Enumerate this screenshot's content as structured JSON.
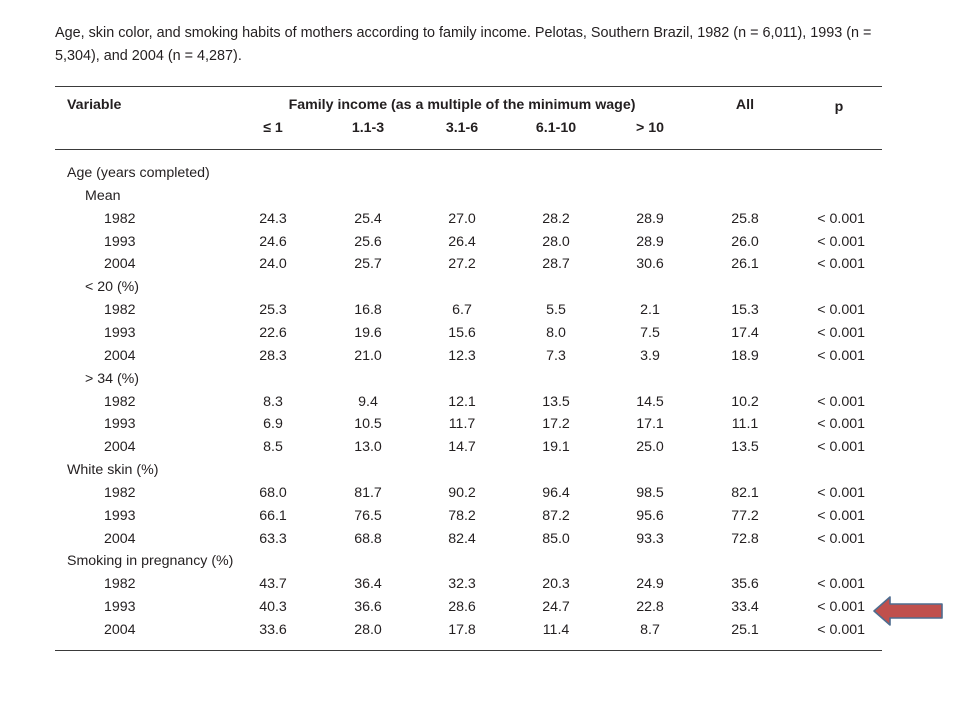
{
  "caption": "Age, skin color, and smoking habits of mothers according to family income. Pelotas, Southern Brazil, 1982 (n = 6,011), 1993 (n = 5,304), and 2004 (n = 4,287).",
  "table": {
    "col_variable": "Variable",
    "col_income_group": "Family income (as a multiple of the minimum wage)",
    "income_cols": [
      "≤ 1",
      "1.1-3",
      "3.1-6",
      "6.1-10",
      "> 10"
    ],
    "col_all": "All",
    "col_p": "p",
    "rows": [
      {
        "label": "Age (years completed)",
        "level": 0,
        "values": []
      },
      {
        "label": "Mean",
        "level": 1,
        "values": []
      },
      {
        "label": "1982",
        "level": 2,
        "values": [
          "24.3",
          "25.4",
          "27.0",
          "28.2",
          "28.9",
          "25.8",
          "< 0.001"
        ]
      },
      {
        "label": "1993",
        "level": 2,
        "values": [
          "24.6",
          "25.6",
          "26.4",
          "28.0",
          "28.9",
          "26.0",
          "< 0.001"
        ]
      },
      {
        "label": "2004",
        "level": 2,
        "values": [
          "24.0",
          "25.7",
          "27.2",
          "28.7",
          "30.6",
          "26.1",
          "< 0.001"
        ]
      },
      {
        "label": "< 20 (%)",
        "level": 1,
        "values": []
      },
      {
        "label": "1982",
        "level": 2,
        "values": [
          "25.3",
          "16.8",
          "6.7",
          "5.5",
          "2.1",
          "15.3",
          "< 0.001"
        ]
      },
      {
        "label": "1993",
        "level": 2,
        "values": [
          "22.6",
          "19.6",
          "15.6",
          "8.0",
          "7.5",
          "17.4",
          "< 0.001"
        ]
      },
      {
        "label": "2004",
        "level": 2,
        "values": [
          "28.3",
          "21.0",
          "12.3",
          "7.3",
          "3.9",
          "18.9",
          "< 0.001"
        ]
      },
      {
        "label": "> 34 (%)",
        "level": 1,
        "values": []
      },
      {
        "label": "1982",
        "level": 2,
        "values": [
          "8.3",
          "9.4",
          "12.1",
          "13.5",
          "14.5",
          "10.2",
          "< 0.001"
        ]
      },
      {
        "label": "1993",
        "level": 2,
        "values": [
          "6.9",
          "10.5",
          "11.7",
          "17.2",
          "17.1",
          "11.1",
          "< 0.001"
        ]
      },
      {
        "label": "2004",
        "level": 2,
        "values": [
          "8.5",
          "13.0",
          "14.7",
          "19.1",
          "25.0",
          "13.5",
          "< 0.001"
        ]
      },
      {
        "label": "White skin (%)",
        "level": 0,
        "values": []
      },
      {
        "label": "1982",
        "level": 2,
        "values": [
          "68.0",
          "81.7",
          "90.2",
          "96.4",
          "98.5",
          "82.1",
          "< 0.001"
        ]
      },
      {
        "label": "1993",
        "level": 2,
        "values": [
          "66.1",
          "76.5",
          "78.2",
          "87.2",
          "95.6",
          "77.2",
          "< 0.001"
        ]
      },
      {
        "label": "2004",
        "level": 2,
        "values": [
          "63.3",
          "68.8",
          "82.4",
          "85.0",
          "93.3",
          "72.8",
          "< 0.001"
        ]
      },
      {
        "label": "Smoking in pregnancy (%)",
        "level": 0,
        "values": []
      },
      {
        "label": "1982",
        "level": 2,
        "values": [
          "43.7",
          "36.4",
          "32.3",
          "20.3",
          "24.9",
          "35.6",
          "< 0.001"
        ]
      },
      {
        "label": "1993",
        "level": 2,
        "values": [
          "40.3",
          "36.6",
          "28.6",
          "24.7",
          "22.8",
          "33.4",
          "< 0.001"
        ]
      },
      {
        "label": "2004",
        "level": 2,
        "values": [
          "33.6",
          "28.0",
          "17.8",
          "11.4",
          "8.7",
          "25.1",
          "< 0.001"
        ]
      }
    ]
  },
  "highlight": {
    "row_index": 19,
    "color": "#c0504d",
    "icon": "arrow-left-icon"
  }
}
